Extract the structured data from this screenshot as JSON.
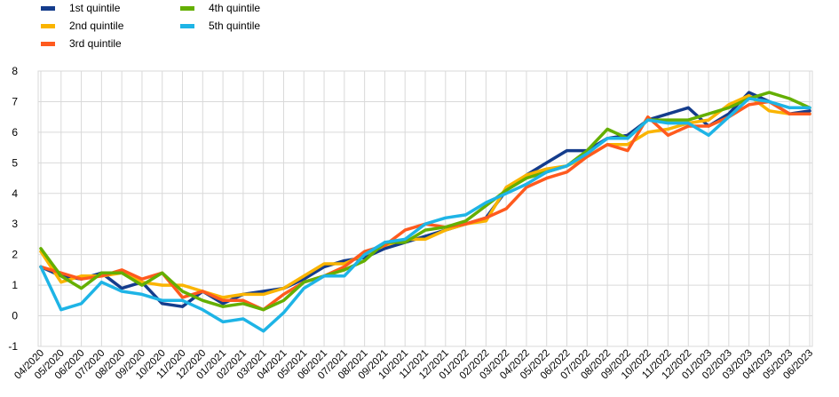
{
  "chart_data": {
    "type": "line",
    "title": "",
    "xlabel": "",
    "ylabel": "",
    "ylim": [
      -1,
      8
    ],
    "yticks": [
      -1,
      0,
      1,
      2,
      3,
      4,
      5,
      6,
      7,
      8
    ],
    "grid": true,
    "legend_position": "top-left",
    "x": [
      "04/2020",
      "05/2020",
      "06/2020",
      "07/2020",
      "08/2020",
      "09/2020",
      "10/2020",
      "11/2020",
      "12/2020",
      "01/2021",
      "02/2021",
      "03/2021",
      "04/2021",
      "05/2021",
      "06/2021",
      "07/2021",
      "08/2021",
      "09/2021",
      "10/2021",
      "11/2021",
      "12/2021",
      "01/2022",
      "02/2022",
      "03/2022",
      "04/2022",
      "05/2022",
      "06/2022",
      "07/2022",
      "08/2022",
      "09/2022",
      "10/2022",
      "11/2022",
      "12/2022",
      "01/2023",
      "02/2023",
      "03/2023",
      "04/2023",
      "05/2023",
      "06/2023"
    ],
    "series": [
      {
        "name": "1st quintile",
        "color": "#143c8c",
        "values": [
          1.6,
          1.3,
          1.2,
          1.4,
          0.9,
          1.1,
          0.4,
          0.3,
          0.8,
          0.4,
          0.7,
          0.8,
          0.9,
          1.2,
          1.6,
          1.8,
          1.9,
          2.2,
          2.4,
          2.6,
          2.8,
          3.0,
          3.2,
          4.1,
          4.6,
          5.0,
          5.4,
          5.4,
          5.8,
          5.9,
          6.4,
          6.6,
          6.8,
          6.2,
          6.6,
          7.3,
          7.0,
          6.6,
          6.7
        ]
      },
      {
        "name": "2nd quintile",
        "color": "#fab400",
        "values": [
          2.1,
          1.1,
          1.3,
          1.3,
          1.4,
          1.1,
          1.0,
          1.0,
          0.8,
          0.6,
          0.7,
          0.7,
          0.9,
          1.3,
          1.7,
          1.7,
          2.0,
          2.3,
          2.5,
          2.5,
          2.8,
          3.0,
          3.1,
          4.2,
          4.6,
          4.8,
          4.9,
          5.2,
          5.6,
          5.6,
          6.0,
          6.1,
          6.3,
          6.4,
          6.9,
          7.2,
          6.7,
          6.6,
          6.6
        ]
      },
      {
        "name": "3rd quintile",
        "color": "#ff5a1e",
        "values": [
          1.6,
          1.4,
          1.2,
          1.3,
          1.5,
          1.2,
          1.4,
          0.6,
          0.8,
          0.5,
          0.5,
          0.2,
          0.7,
          1.1,
          1.3,
          1.6,
          2.1,
          2.3,
          2.8,
          3.0,
          2.9,
          3.0,
          3.2,
          3.5,
          4.2,
          4.5,
          4.7,
          5.2,
          5.6,
          5.4,
          6.5,
          5.9,
          6.2,
          6.2,
          6.5,
          6.9,
          7.0,
          6.6,
          6.6
        ]
      },
      {
        "name": "4th quintile",
        "color": "#64af00",
        "values": [
          2.2,
          1.3,
          0.9,
          1.4,
          1.4,
          1.0,
          1.4,
          0.8,
          0.5,
          0.3,
          0.4,
          0.2,
          0.5,
          1.1,
          1.3,
          1.5,
          1.8,
          2.4,
          2.4,
          2.8,
          2.9,
          3.1,
          3.6,
          4.1,
          4.5,
          4.7,
          4.9,
          5.4,
          6.1,
          5.8,
          6.4,
          6.4,
          6.4,
          6.6,
          6.8,
          7.1,
          7.3,
          7.1,
          6.8
        ]
      },
      {
        "name": "5th quintile",
        "color": "#1eb4e6",
        "values": [
          1.6,
          0.2,
          0.4,
          1.1,
          0.8,
          0.7,
          0.5,
          0.5,
          0.2,
          -0.2,
          -0.1,
          -0.5,
          0.1,
          0.9,
          1.3,
          1.3,
          2.0,
          2.4,
          2.5,
          3.0,
          3.2,
          3.3,
          3.7,
          4.0,
          4.3,
          4.7,
          4.9,
          5.3,
          5.8,
          5.8,
          6.4,
          6.3,
          6.3,
          5.9,
          6.5,
          7.1,
          7.0,
          6.8,
          6.8
        ]
      }
    ]
  }
}
